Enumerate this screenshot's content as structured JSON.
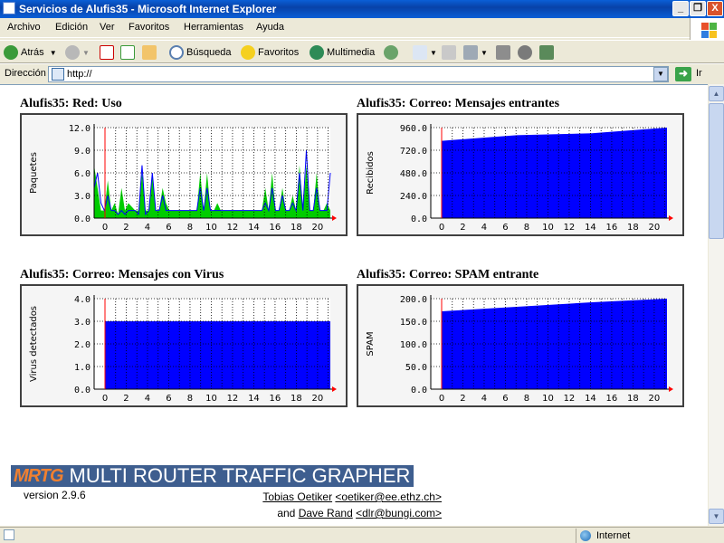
{
  "window": {
    "title": "Servicios de Alufis35 - Microsoft Internet Explorer",
    "buttons": [
      "_",
      "❐",
      "X"
    ]
  },
  "menu": [
    "Archivo",
    "Edición",
    "Ver",
    "Favoritos",
    "Herramientas",
    "Ayuda"
  ],
  "toolbar": {
    "back": "Atrás",
    "search": "Búsqueda",
    "favorites": "Favoritos",
    "media": "Multimedia"
  },
  "address": {
    "label": "Dirección",
    "value": "http://",
    "go": "Ir"
  },
  "graphs": [
    {
      "title": "Alufis35: Red: Uso",
      "ylabel": "Paquetes",
      "yticks": [
        "12.0",
        "9.0",
        "6.0",
        "3.0",
        "0.0"
      ],
      "xticks": [
        "0",
        "2",
        "4",
        "6",
        "8",
        "10",
        "12",
        "14",
        "16",
        "18",
        "20"
      ]
    },
    {
      "title": "Alufis35: Correo: Mensajes entrantes",
      "ylabel": "Recibidos",
      "yticks": [
        "960.0",
        "720.0",
        "480.0",
        "240.0",
        "0.0"
      ],
      "xticks": [
        "0",
        "2",
        "4",
        "6",
        "8",
        "10",
        "12",
        "14",
        "16",
        "18",
        "20"
      ]
    },
    {
      "title": "Alufis35: Correo: Mensajes con Virus",
      "ylabel": "Virus detectados",
      "yticks": [
        "4.0",
        "3.0",
        "2.0",
        "1.0",
        "0.0"
      ],
      "xticks": [
        "0",
        "2",
        "4",
        "6",
        "8",
        "10",
        "12",
        "14",
        "16",
        "18",
        "20"
      ]
    },
    {
      "title": "Alufis35: Correo: SPAM entrante",
      "ylabel": "SPAM",
      "yticks": [
        "200.0",
        "150.0",
        "100.0",
        "50.0",
        "0.0"
      ],
      "xticks": [
        "0",
        "2",
        "4",
        "6",
        "8",
        "10",
        "12",
        "14",
        "16",
        "18",
        "20"
      ]
    }
  ],
  "chart_data": [
    {
      "type": "area",
      "title": "Alufis35: Red: Uso",
      "ylabel": "Paquetes",
      "ylim": [
        0,
        12
      ],
      "series": [
        {
          "color": "#00CC00",
          "values": [
            7,
            4,
            1,
            1,
            5,
            1,
            2,
            0.5,
            4,
            1,
            2,
            1.5,
            1,
            1,
            6,
            1,
            1,
            6,
            1,
            1,
            4,
            2,
            1,
            1,
            1,
            1,
            1,
            1,
            1,
            1,
            1,
            6,
            1,
            6,
            1,
            1,
            2,
            1,
            1,
            1,
            1,
            1,
            1,
            1,
            1,
            1,
            1,
            1,
            1,
            1,
            4,
            1,
            6,
            1,
            1,
            4,
            1,
            1,
            3,
            1,
            7,
            1,
            7,
            1,
            1,
            6,
            1,
            1,
            2,
            1
          ]
        },
        {
          "color": "#0000FF",
          "values": [
            4,
            6,
            2,
            1,
            3,
            1,
            1,
            0.5,
            1,
            0.5,
            1,
            1,
            1,
            0.5,
            7,
            0.5,
            1,
            6,
            1,
            1,
            3,
            1,
            1,
            1,
            1,
            1,
            1,
            1,
            1,
            1,
            1,
            4,
            1,
            4,
            1,
            1,
            1,
            1,
            1,
            1,
            1,
            1,
            1,
            1,
            1,
            1,
            1,
            1,
            1,
            1,
            2,
            1,
            4,
            1,
            1,
            3,
            1,
            1,
            2,
            1,
            6,
            1,
            9,
            1,
            1,
            4,
            1,
            1,
            1,
            6
          ]
        }
      ]
    },
    {
      "type": "area",
      "title": "Alufis35: Correo: Mensajes entrantes",
      "ylabel": "Recibidos",
      "ylim": [
        0,
        960
      ],
      "values": [
        820,
        880,
        900,
        960
      ]
    },
    {
      "type": "area",
      "title": "Alufis35: Correo: Mensajes con Virus",
      "ylabel": "Virus detectados",
      "ylim": [
        0,
        4
      ],
      "values": [
        3,
        3,
        3,
        3
      ]
    },
    {
      "type": "area",
      "title": "Alufis35: Correo: SPAM entrante",
      "ylabel": "SPAM",
      "ylim": [
        0,
        200
      ],
      "values": [
        172,
        182,
        192,
        200
      ]
    }
  ],
  "footer": {
    "logo_mrtg": "MRTG",
    "logo_text": "MULTI ROUTER TRAFFIC GRAPHER",
    "version": "version 2.9.6",
    "author1": "Tobias Oetiker",
    "email1": "<oetiker@ee.ethz.ch>",
    "and": "and",
    "author2": "Dave Rand",
    "email2": "<dlr@bungi.com>"
  },
  "status": {
    "zone": "Internet"
  }
}
